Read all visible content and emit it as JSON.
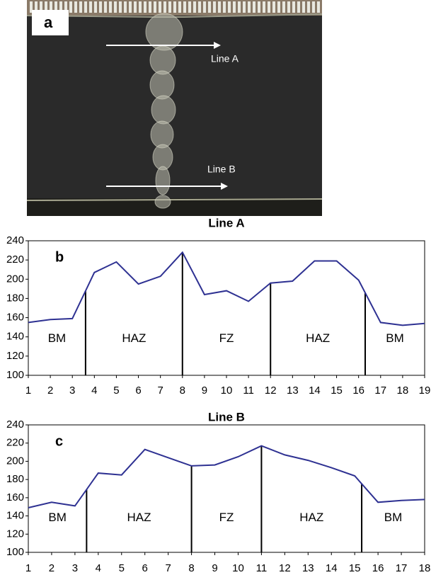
{
  "photo": {
    "label": "a",
    "annotations": [
      "Line A",
      "Line B"
    ]
  },
  "chart_data": [
    {
      "type": "line",
      "panel": "b",
      "title": "Line A",
      "x": [
        1,
        2,
        3,
        4,
        5,
        6,
        7,
        8,
        9,
        10,
        11,
        12,
        13,
        14,
        15,
        16,
        17,
        18,
        19
      ],
      "values": [
        155,
        158,
        159,
        207,
        218,
        195,
        203,
        228,
        184,
        188,
        177,
        196,
        198,
        219,
        219,
        199,
        155,
        152,
        154
      ],
      "color": "#2e3192",
      "xlim": [
        1,
        19
      ],
      "xticks": [
        1,
        2,
        3,
        4,
        5,
        6,
        7,
        8,
        9,
        10,
        11,
        12,
        13,
        14,
        15,
        16,
        17,
        18,
        19
      ],
      "ylim": [
        100,
        240
      ],
      "yticks": [
        100,
        120,
        140,
        160,
        180,
        200,
        220,
        240
      ],
      "boundaries": [
        3.6,
        8,
        12,
        16.3
      ],
      "zones": [
        "BM",
        "HAZ",
        "FZ",
        "HAZ",
        "BM"
      ]
    },
    {
      "type": "line",
      "panel": "c",
      "title": "Line B",
      "x": [
        1,
        2,
        3,
        4,
        5,
        6,
        7,
        8,
        9,
        10,
        11,
        12,
        13,
        14,
        15,
        16,
        17,
        18
      ],
      "values": [
        149,
        155,
        151,
        187,
        185,
        213,
        204,
        195,
        196,
        205,
        217,
        207,
        201,
        193,
        184,
        155,
        157,
        158
      ],
      "color": "#2e3192",
      "xlim": [
        1,
        18
      ],
      "xticks": [
        1,
        2,
        3,
        4,
        5,
        6,
        7,
        8,
        9,
        10,
        11,
        12,
        13,
        14,
        15,
        16,
        17,
        18
      ],
      "ylim": [
        100,
        240
      ],
      "yticks": [
        100,
        120,
        140,
        160,
        180,
        200,
        220,
        240
      ],
      "boundaries": [
        3.5,
        8,
        11,
        15.3
      ],
      "zones": [
        "BM",
        "HAZ",
        "FZ",
        "HAZ",
        "BM"
      ]
    }
  ]
}
